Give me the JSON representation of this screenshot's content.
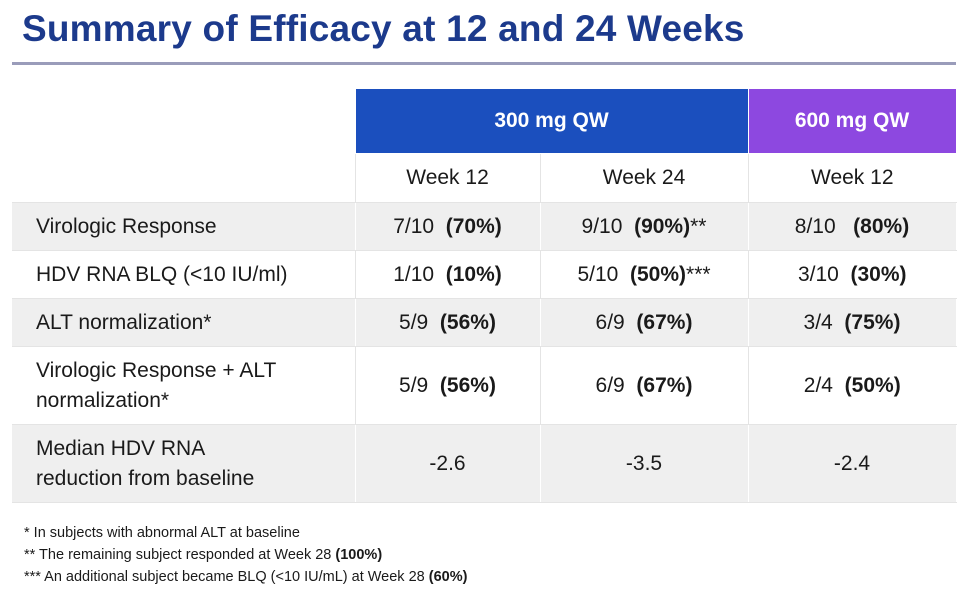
{
  "title": "Summary of Efficacy at 12 and 24 Weeks",
  "colors": {
    "title": "#1c3a8c",
    "group_300": "#1b4fbe",
    "group_600": "#8d48e0",
    "shade": "#efefef"
  },
  "table": {
    "groups": [
      "300 mg QW",
      "600 mg QW"
    ],
    "subheaders": [
      "Week 12",
      "Week 24",
      "Week 12"
    ],
    "rows": [
      {
        "label": "Virologic Response",
        "cells": [
          {
            "n": "7/10",
            "pct": "(70%)",
            "note": ""
          },
          {
            "n": "9/10",
            "pct": "(90%)",
            "note": "**"
          },
          {
            "n": "8/10",
            "pct": "(80%)",
            "note": ""
          }
        ]
      },
      {
        "label": "HDV RNA BLQ (<10 IU/ml)",
        "cells": [
          {
            "n": "1/10",
            "pct": "(10%)",
            "note": ""
          },
          {
            "n": "5/10",
            "pct": "(50%)",
            "note": "***"
          },
          {
            "n": "3/10",
            "pct": "(30%)",
            "note": ""
          }
        ]
      },
      {
        "label": "ALT normalization*",
        "cells": [
          {
            "n": "5/9",
            "pct": "(56%)",
            "note": ""
          },
          {
            "n": "6/9",
            "pct": "(67%)",
            "note": ""
          },
          {
            "n": "3/4",
            "pct": "(75%)",
            "note": ""
          }
        ]
      },
      {
        "label_line1": "Virologic Response + ALT",
        "label_line2": "normalization*",
        "cells": [
          {
            "n": "5/9",
            "pct": "(56%)",
            "note": ""
          },
          {
            "n": "6/9",
            "pct": "(67%)",
            "note": ""
          },
          {
            "n": "2/4",
            "pct": "(50%)",
            "note": ""
          }
        ]
      },
      {
        "label_line1": "Median HDV RNA",
        "label_line2": "reduction from baseline",
        "cells": [
          {
            "v": "-2.6"
          },
          {
            "v": "-3.5"
          },
          {
            "v": "-2.4"
          }
        ]
      }
    ]
  },
  "footnotes": [
    {
      "text": "* In subjects with abnormal ALT at baseline",
      "bold": ""
    },
    {
      "text": "** The remaining subject responded at Week 28 ",
      "bold": "(100%)"
    },
    {
      "text": "*** An additional subject became BLQ (<10 IU/mL) at Week 28 ",
      "bold": "(60%)"
    }
  ]
}
